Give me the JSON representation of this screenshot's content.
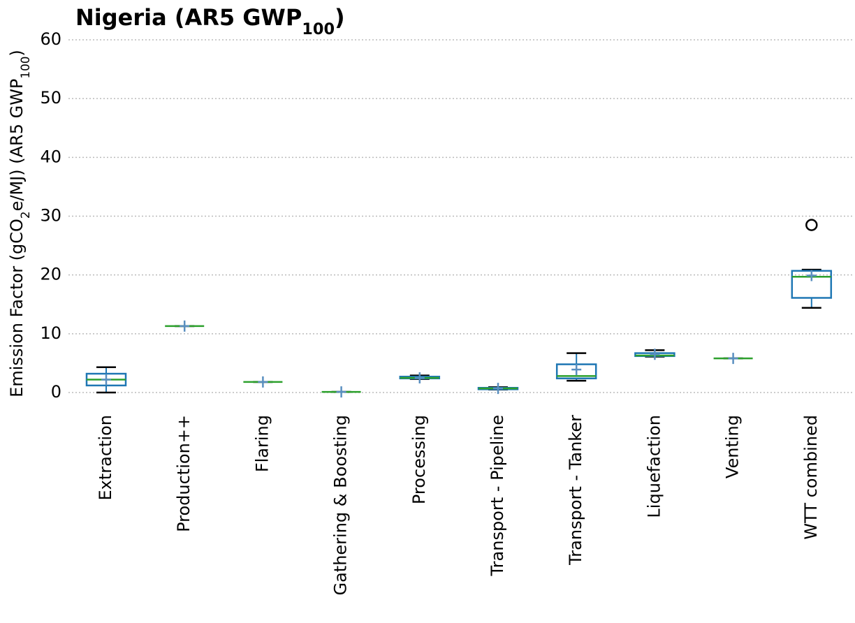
{
  "chart_data": {
    "type": "box",
    "title_parts": [
      "Nigeria (AR5 GWP",
      "100",
      ")"
    ],
    "ylabel_parts": [
      "Emission Factor (gCO",
      "2",
      "e/MJ) (AR5 GWP",
      "100",
      ")"
    ],
    "categories": [
      "Extraction",
      "Production++",
      "Flaring",
      "Gathering & Boosting",
      "Processing",
      "Transport - Pipeline",
      "Transport - Tanker",
      "Liquefaction",
      "Venting",
      "WTT combined"
    ],
    "boxes": [
      {
        "low": 0,
        "q1": 1.2,
        "median": 2.2,
        "q3": 3.2,
        "high": 4.3,
        "mean": 2.2,
        "outliers": []
      },
      {
        "low": 11.3,
        "q1": 11.3,
        "median": 11.3,
        "q3": 11.3,
        "high": 11.3,
        "mean": 11.3,
        "outliers": []
      },
      {
        "low": 1.8,
        "q1": 1.8,
        "median": 1.8,
        "q3": 1.8,
        "high": 1.8,
        "mean": 1.8,
        "outliers": []
      },
      {
        "low": 0.1,
        "q1": 0.1,
        "median": 0.1,
        "q3": 0.1,
        "high": 0.1,
        "mean": 0.1,
        "outliers": []
      },
      {
        "low": 2.3,
        "q1": 2.4,
        "median": 2.5,
        "q3": 2.7,
        "high": 2.9,
        "mean": 2.5,
        "outliers": []
      },
      {
        "low": 0.5,
        "q1": 0.55,
        "median": 0.7,
        "q3": 0.8,
        "high": 0.9,
        "mean": 0.7,
        "outliers": []
      },
      {
        "low": 2.0,
        "q1": 2.4,
        "median": 2.8,
        "q3": 4.8,
        "high": 6.7,
        "mean": 3.9,
        "outliers": []
      },
      {
        "low": 6.1,
        "q1": 6.2,
        "median": 6.3,
        "q3": 6.7,
        "high": 7.2,
        "mean": 6.5,
        "outliers": []
      },
      {
        "low": 5.8,
        "q1": 5.8,
        "median": 5.8,
        "q3": 5.8,
        "high": 5.8,
        "mean": 5.8,
        "outliers": []
      },
      {
        "low": 14.4,
        "q1": 16.1,
        "median": 19.7,
        "q3": 20.7,
        "high": 20.9,
        "mean": 19.9,
        "outliers": [
          28.5
        ]
      }
    ],
    "box_color": "#1f77b4",
    "median_color": "#2ca02c",
    "whisker_color": "#000000",
    "mean_color": "#5a8fc0",
    "ylim": [
      0,
      60
    ],
    "yticks": [
      0,
      10,
      20,
      30,
      40,
      50,
      60
    ],
    "grid": true
  }
}
